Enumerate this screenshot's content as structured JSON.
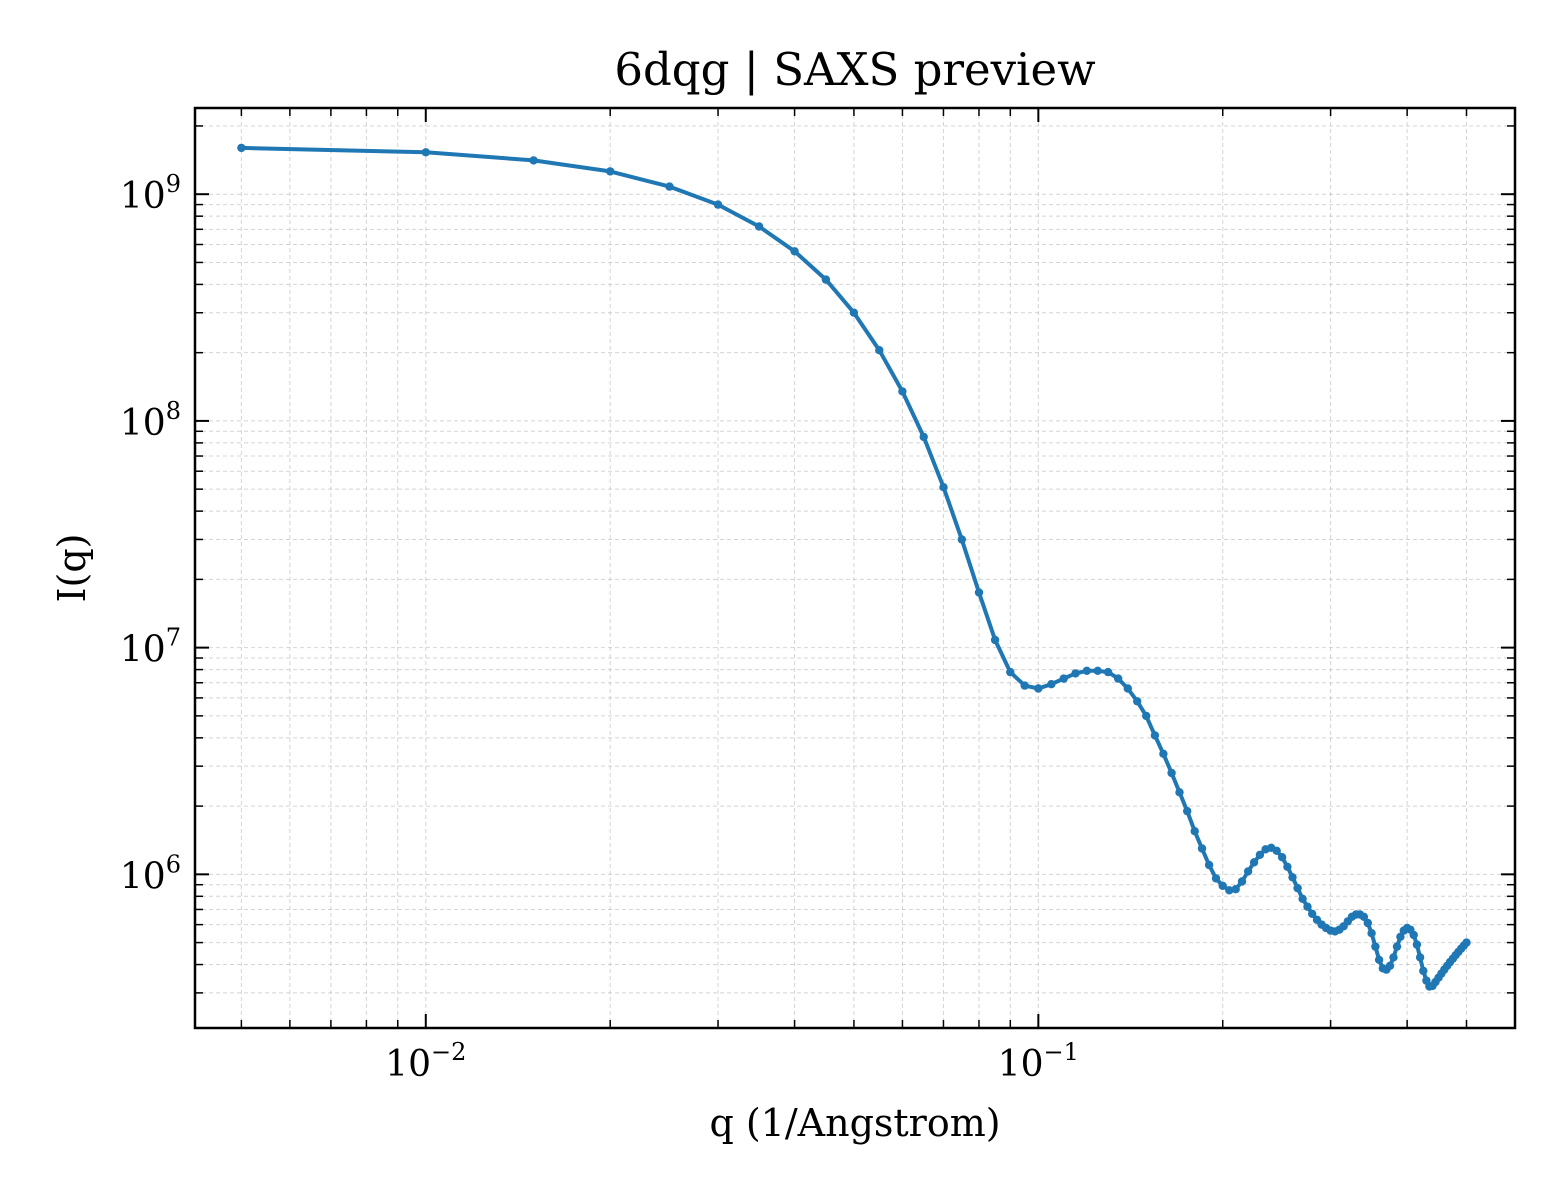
{
  "chart_data": {
    "type": "line",
    "title": "6dqg | SAXS preview",
    "xlabel": "q (1/Angstrom)",
    "ylabel": "I(q)",
    "x_scale": "log",
    "y_scale": "log",
    "xlim": [
      0.0042,
      0.6
    ],
    "ylim": [
      210000,
      2400000000
    ],
    "grid": true,
    "color": "#1f77b4",
    "x_ticks": [
      {
        "base": "10",
        "exp": "−2",
        "value": 0.01
      },
      {
        "base": "10",
        "exp": "−1",
        "value": 0.1
      }
    ],
    "y_ticks": [
      {
        "base": "10",
        "exp": "6",
        "value": 1000000
      },
      {
        "base": "10",
        "exp": "7",
        "value": 10000000
      },
      {
        "base": "10",
        "exp": "8",
        "value": 100000000
      },
      {
        "base": "10",
        "exp": "9",
        "value": 1000000000
      }
    ],
    "series": [
      {
        "x": [
          0.005,
          0.01,
          0.015,
          0.02,
          0.025,
          0.03,
          0.035,
          0.04,
          0.045,
          0.05,
          0.055,
          0.06,
          0.065,
          0.07,
          0.075,
          0.08,
          0.085,
          0.09,
          0.095,
          0.1,
          0.105,
          0.11,
          0.115,
          0.12,
          0.125,
          0.13,
          0.135,
          0.14,
          0.145,
          0.15,
          0.155,
          0.16,
          0.165,
          0.17,
          0.175,
          0.18,
          0.185,
          0.19,
          0.195,
          0.2,
          0.205,
          0.21,
          0.215,
          0.22,
          0.225,
          0.23,
          0.235,
          0.24,
          0.245,
          0.25,
          0.255,
          0.26,
          0.265,
          0.27,
          0.275,
          0.28,
          0.285,
          0.29,
          0.295,
          0.3,
          0.305,
          0.31,
          0.315,
          0.32,
          0.325,
          0.33,
          0.335,
          0.34,
          0.345,
          0.35,
          0.355,
          0.36,
          0.365,
          0.37,
          0.375,
          0.38,
          0.385,
          0.39,
          0.395,
          0.4,
          0.405,
          0.41,
          0.415,
          0.42,
          0.425,
          0.43,
          0.435,
          0.44,
          0.445,
          0.45,
          0.455,
          0.46,
          0.465,
          0.47,
          0.475,
          0.48,
          0.485,
          0.49,
          0.495,
          0.5
        ],
        "y": [
          1600000000,
          1530000000,
          1410000000,
          1260000000,
          1080000000,
          900000000,
          720000000,
          560000000,
          420000000,
          300000000,
          205000000,
          135000000,
          85000000,
          51000000,
          30000000,
          17500000,
          10800000,
          7800000,
          6800000,
          6600000,
          6900000,
          7300000,
          7700000,
          7900000,
          7900000,
          7800000,
          7300000,
          6600000,
          5800000,
          5000000,
          4100000,
          3400000,
          2800000,
          2300000,
          1900000,
          1550000,
          1300000,
          1100000,
          960000,
          890000,
          850000,
          860000,
          930000,
          1030000,
          1130000,
          1220000,
          1290000,
          1310000,
          1270000,
          1190000,
          1080000,
          970000,
          870000,
          780000,
          720000,
          670000,
          630000,
          600000,
          580000,
          565000,
          560000,
          570000,
          590000,
          620000,
          650000,
          665000,
          665000,
          650000,
          610000,
          550000,
          480000,
          420000,
          385000,
          380000,
          395000,
          430000,
          480000,
          530000,
          565000,
          580000,
          570000,
          540000,
          490000,
          430000,
          375000,
          340000,
          320000,
          322000,
          335000,
          350000,
          365000,
          380000,
          395000,
          410000,
          425000,
          440000,
          455000,
          470000,
          485000,
          500000
        ]
      }
    ]
  }
}
